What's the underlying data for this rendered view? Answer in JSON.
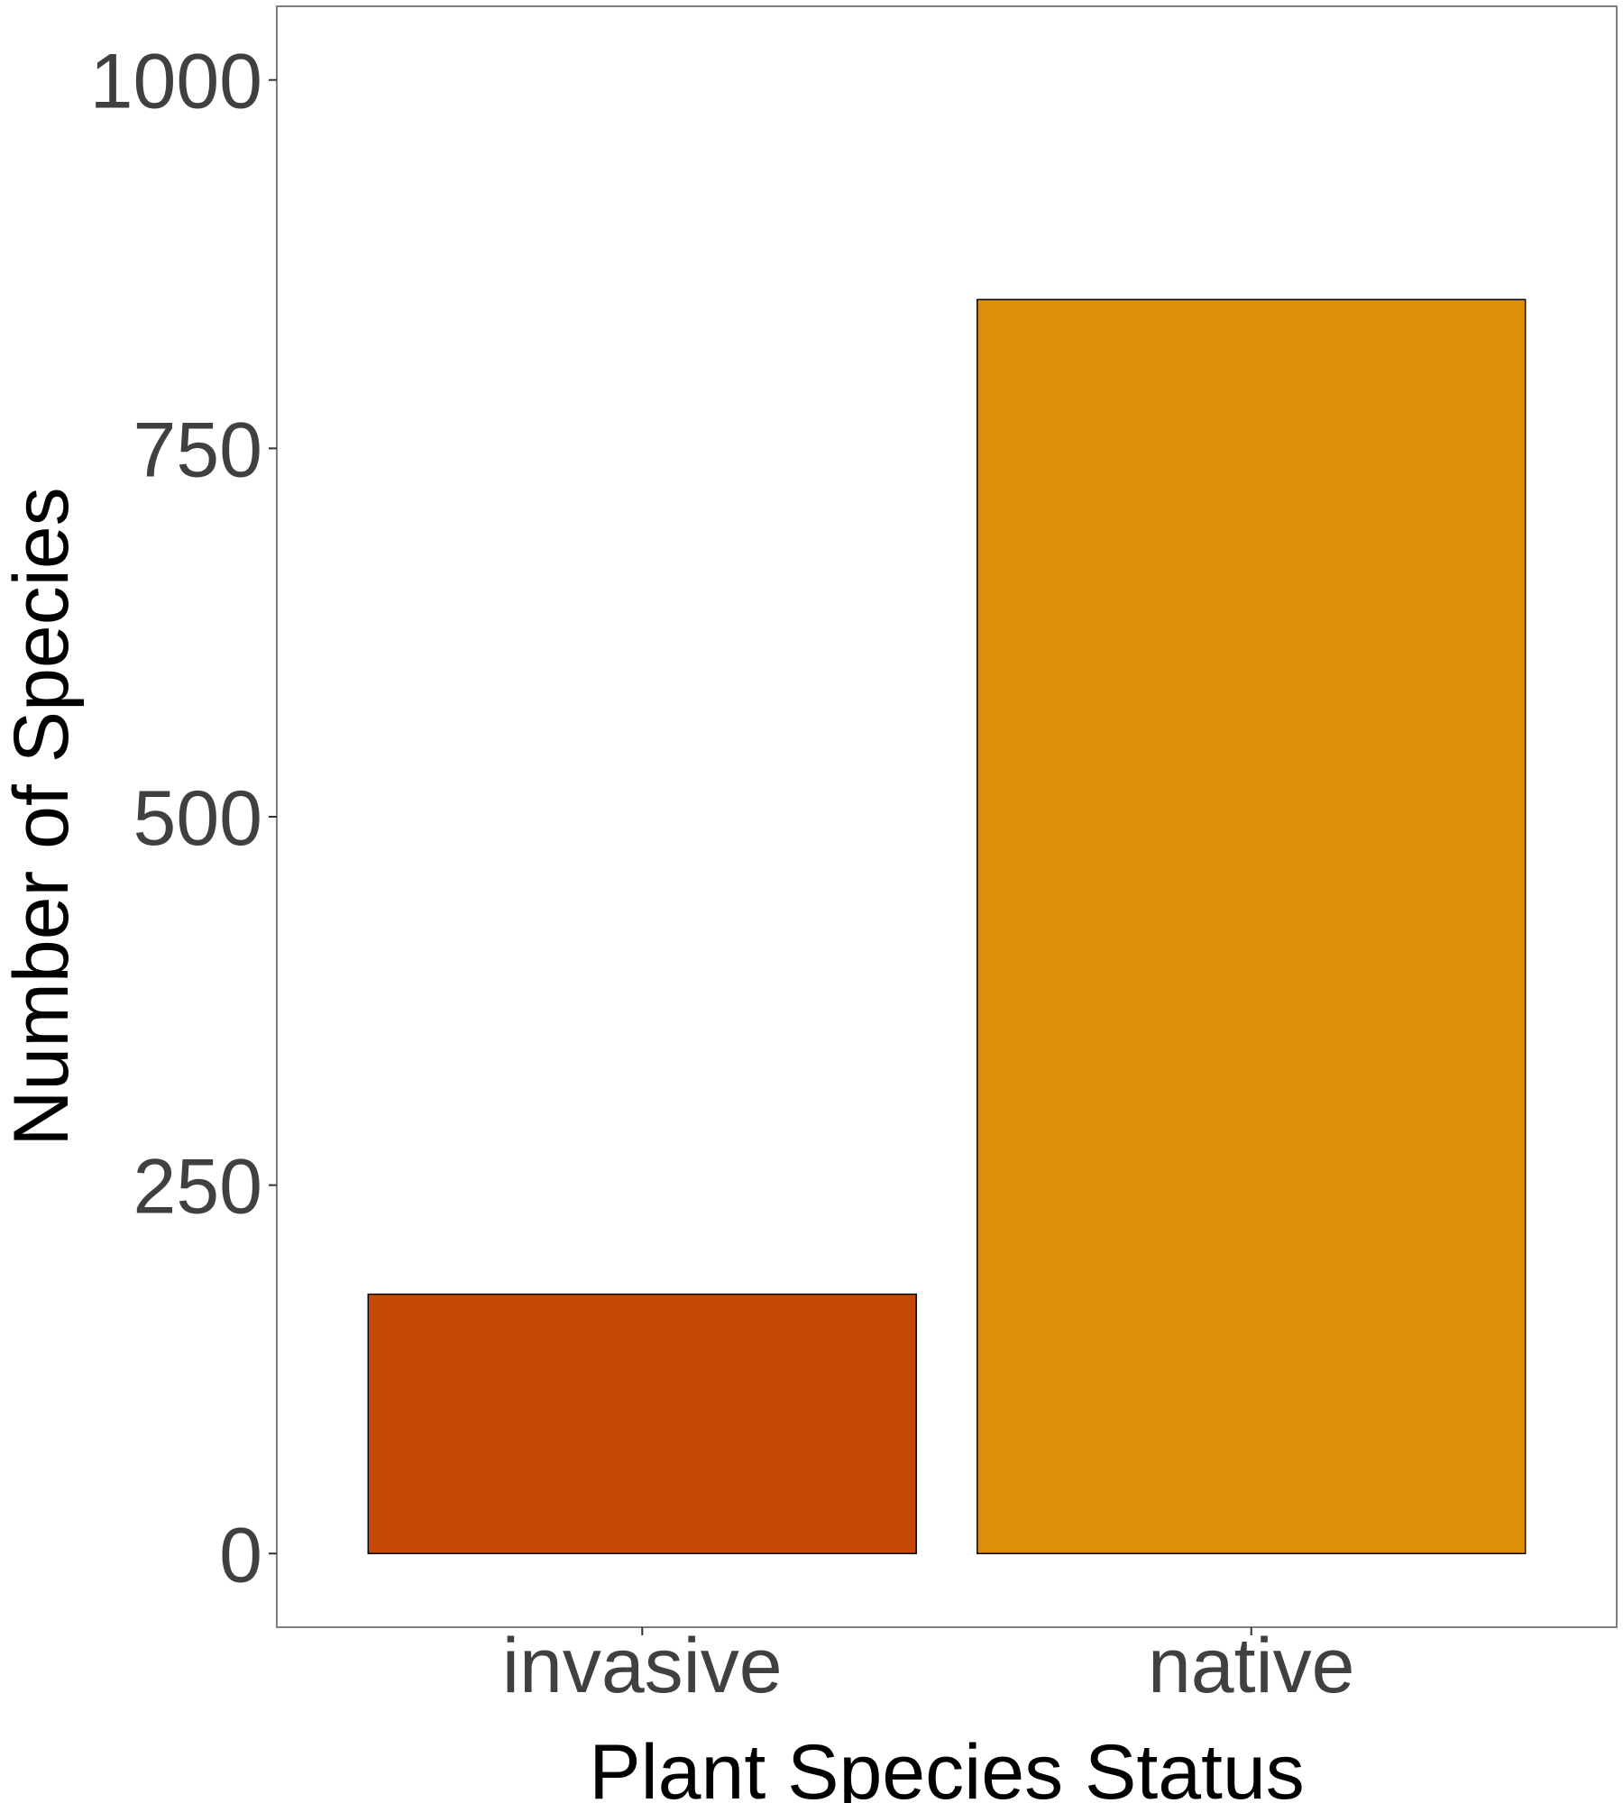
{
  "chart_data": {
    "type": "bar",
    "title": "",
    "xlabel": "Plant Species Status",
    "ylabel": "Number of Species",
    "categories": [
      "invasive",
      "native"
    ],
    "values": [
      176,
      851
    ],
    "ylim": [
      -50,
      1050
    ],
    "yticks": [
      0,
      250,
      500,
      750,
      1000
    ],
    "ytick_labels": [
      "0",
      "250",
      "500",
      "750",
      "1000"
    ],
    "colors": [
      "#C64A07",
      "#DE8E0B"
    ],
    "bar_outline": "#000000",
    "grid": false,
    "legend": "none"
  }
}
